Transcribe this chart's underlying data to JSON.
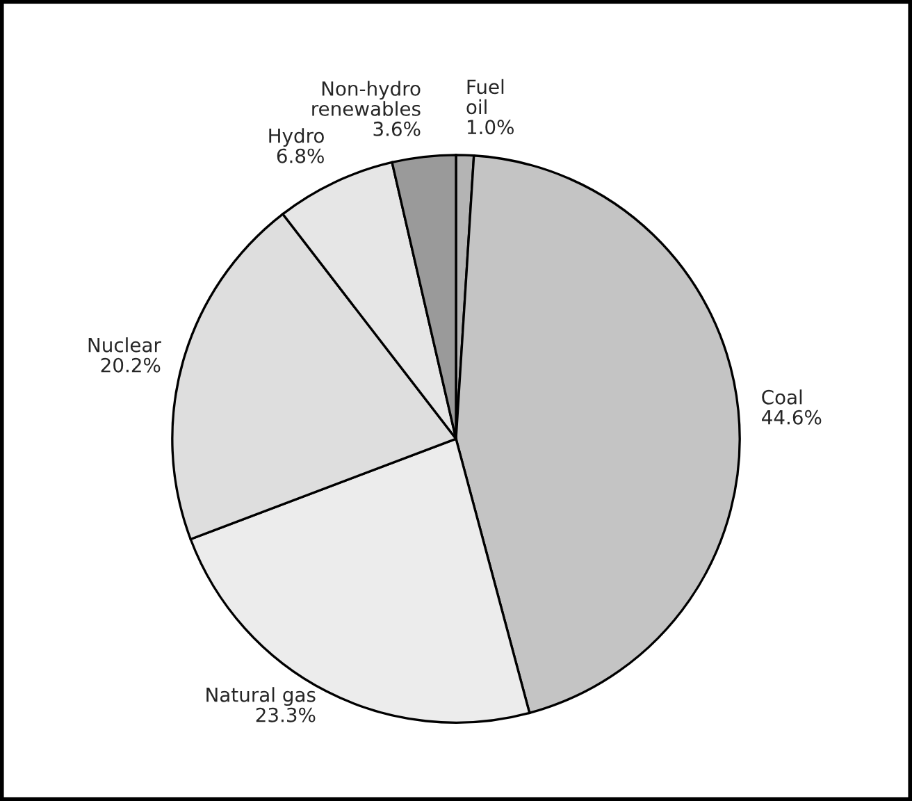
{
  "chart_data": {
    "type": "pie",
    "categories": [
      "Fuel\noil",
      "Coal",
      "Natural gas",
      "Nuclear",
      "Hydro",
      "Non-hydro\nrenewables"
    ],
    "values": [
      1.0,
      44.6,
      23.3,
      20.2,
      6.8,
      3.6
    ],
    "value_labels": [
      "1.0%",
      "44.6%",
      "23.3%",
      "20.2%",
      "6.8%",
      "3.6%"
    ],
    "colors": [
      "#b4b4b4",
      "#c4c4c4",
      "#ececec",
      "#dedede",
      "#e6e6e6",
      "#9a9a9a"
    ]
  }
}
